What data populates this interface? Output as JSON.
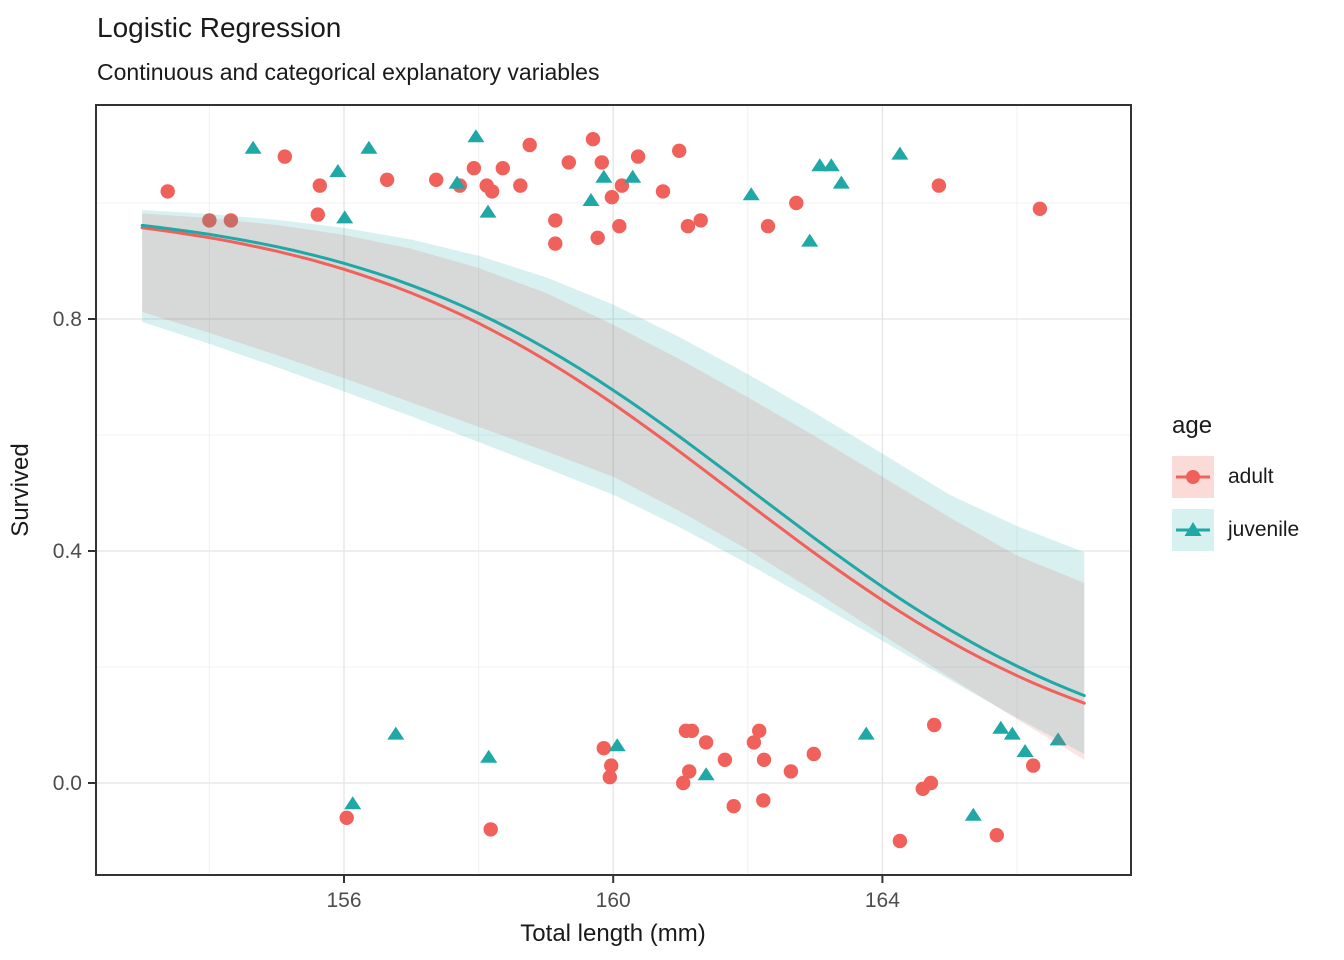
{
  "chart_data": {
    "type": "scatter",
    "title": "Logistic Regression",
    "subtitle": "Continuous and categorical explanatory variables",
    "xlabel": "Total length (mm)",
    "ylabel": "Survived",
    "x_ticks": [
      {
        "v": 156,
        "label": "156"
      },
      {
        "v": 160,
        "label": "160"
      },
      {
        "v": 164,
        "label": "164"
      }
    ],
    "x_minor_ticks": [
      154,
      158,
      162,
      166
    ],
    "y_ticks": [
      {
        "v": 0.0,
        "label": "0.0"
      },
      {
        "v": 0.4,
        "label": "0.4"
      },
      {
        "v": 0.8,
        "label": "0.8"
      }
    ],
    "y_minor_ticks": [
      0.2,
      0.6,
      1.0
    ],
    "xlim": [
      152.3,
      167.7
    ],
    "ylim": [
      -0.16,
      1.17
    ],
    "grid": true,
    "colors": {
      "adult": "#F0615B",
      "juvenile": "#1FA8A6",
      "adult_key_bg": "#FBDBD8",
      "juvenile_key_bg": "#D7F1F0",
      "grid_major": "#E4E4E4",
      "grid_minor": "#F0F0F0",
      "panel_border": "#333333",
      "tick_label": "#4D4D4D",
      "ribbon_opacity": 0.17
    },
    "legend": {
      "title": "age",
      "position": "right",
      "entries": [
        {
          "label": "adult",
          "color": "#F0615B",
          "marker": "circle",
          "key_bg": "#FBDBD8"
        },
        {
          "label": "juvenile",
          "color": "#1FA8A6",
          "marker": "triangle",
          "key_bg": "#D7F1F0"
        }
      ]
    },
    "series": [
      {
        "name": "adult",
        "color": "#F0615B",
        "marker": "circle",
        "curve": {
          "type": "logistic",
          "x0": 161.8,
          "k": 0.353,
          "x_range": [
            153,
            167
          ]
        },
        "ribbon": [
          [
            153,
            0.812,
            0.982
          ],
          [
            154,
            0.776,
            0.974
          ],
          [
            155,
            0.738,
            0.962
          ],
          [
            156,
            0.698,
            0.945
          ],
          [
            157,
            0.656,
            0.921
          ],
          [
            158,
            0.614,
            0.888
          ],
          [
            159,
            0.572,
            0.845
          ],
          [
            160,
            0.528,
            0.79
          ],
          [
            161,
            0.468,
            0.73
          ],
          [
            162,
            0.402,
            0.665
          ],
          [
            163,
            0.33,
            0.598
          ],
          [
            164,
            0.255,
            0.528
          ],
          [
            165,
            0.182,
            0.458
          ],
          [
            166,
            0.11,
            0.392
          ],
          [
            167,
            0.04,
            0.345
          ]
        ],
        "points": [
          [
            153.38,
            1.02
          ],
          [
            154.0,
            0.97
          ],
          [
            154.32,
            0.97
          ],
          [
            155.12,
            1.08
          ],
          [
            155.61,
            0.98
          ],
          [
            155.64,
            1.03
          ],
          [
            156.64,
            1.04
          ],
          [
            157.37,
            1.04
          ],
          [
            157.72,
            1.03
          ],
          [
            157.93,
            1.06
          ],
          [
            158.12,
            1.03
          ],
          [
            158.2,
            1.02
          ],
          [
            158.36,
            1.06
          ],
          [
            158.62,
            1.03
          ],
          [
            158.76,
            1.1
          ],
          [
            159.14,
            0.97
          ],
          [
            159.14,
            0.93
          ],
          [
            159.34,
            1.07
          ],
          [
            159.7,
            1.11
          ],
          [
            159.77,
            0.94
          ],
          [
            159.83,
            1.07
          ],
          [
            159.98,
            1.01
          ],
          [
            160.09,
            0.96
          ],
          [
            160.13,
            1.03
          ],
          [
            160.37,
            1.08
          ],
          [
            160.74,
            1.02
          ],
          [
            160.98,
            1.09
          ],
          [
            161.11,
            0.96
          ],
          [
            161.3,
            0.97
          ],
          [
            162.3,
            0.96
          ],
          [
            162.72,
            1.0
          ],
          [
            164.84,
            1.03
          ],
          [
            166.34,
            0.99
          ],
          [
            156.04,
            -0.06
          ],
          [
            158.18,
            -0.08
          ],
          [
            159.86,
            0.06
          ],
          [
            159.95,
            0.01
          ],
          [
            159.97,
            0.03
          ],
          [
            161.04,
            0.0
          ],
          [
            161.08,
            0.09
          ],
          [
            161.13,
            0.02
          ],
          [
            161.17,
            0.09
          ],
          [
            161.38,
            0.07
          ],
          [
            161.66,
            0.04
          ],
          [
            161.79,
            -0.04
          ],
          [
            162.09,
            0.07
          ],
          [
            162.17,
            0.09
          ],
          [
            162.23,
            -0.03
          ],
          [
            162.24,
            0.04
          ],
          [
            162.64,
            0.02
          ],
          [
            162.98,
            0.05
          ],
          [
            164.26,
            -0.1
          ],
          [
            164.6,
            -0.01
          ],
          [
            164.72,
            0.0
          ],
          [
            164.77,
            0.1
          ],
          [
            165.7,
            -0.09
          ],
          [
            166.24,
            0.03
          ]
        ]
      },
      {
        "name": "juvenile",
        "color": "#1FA8A6",
        "marker": "triangle",
        "curve": {
          "type": "logistic",
          "x0": 162.1,
          "k": 0.353,
          "x_range": [
            153,
            167
          ]
        },
        "ribbon": [
          [
            153,
            0.795,
            0.988
          ],
          [
            154,
            0.757,
            0.981
          ],
          [
            155,
            0.717,
            0.971
          ],
          [
            156,
            0.675,
            0.957
          ],
          [
            157,
            0.632,
            0.937
          ],
          [
            158,
            0.588,
            0.909
          ],
          [
            159,
            0.543,
            0.872
          ],
          [
            160,
            0.497,
            0.825
          ],
          [
            161,
            0.44,
            0.768
          ],
          [
            162,
            0.378,
            0.705
          ],
          [
            163,
            0.312,
            0.638
          ],
          [
            164,
            0.245,
            0.568
          ],
          [
            165,
            0.178,
            0.497
          ],
          [
            166,
            0.112,
            0.443
          ],
          [
            167,
            0.05,
            0.398
          ]
        ],
        "points": [
          [
            154.65,
            1.09
          ],
          [
            155.91,
            1.05
          ],
          [
            156.01,
            0.97
          ],
          [
            156.37,
            1.09
          ],
          [
            157.68,
            1.03
          ],
          [
            157.96,
            1.11
          ],
          [
            158.14,
            0.98
          ],
          [
            159.67,
            1.0
          ],
          [
            159.86,
            1.04
          ],
          [
            160.29,
            1.04
          ],
          [
            162.05,
            1.01
          ],
          [
            162.92,
            0.93
          ],
          [
            163.07,
            1.06
          ],
          [
            163.24,
            1.06
          ],
          [
            163.39,
            1.03
          ],
          [
            164.26,
            1.08
          ],
          [
            156.13,
            -0.04
          ],
          [
            156.77,
            0.08
          ],
          [
            158.15,
            0.04
          ],
          [
            160.06,
            0.06
          ],
          [
            161.38,
            0.01
          ],
          [
            163.76,
            0.08
          ],
          [
            165.35,
            -0.06
          ],
          [
            165.76,
            0.09
          ],
          [
            165.93,
            0.08
          ],
          [
            166.12,
            0.05
          ],
          [
            166.61,
            0.07
          ]
        ]
      }
    ]
  }
}
